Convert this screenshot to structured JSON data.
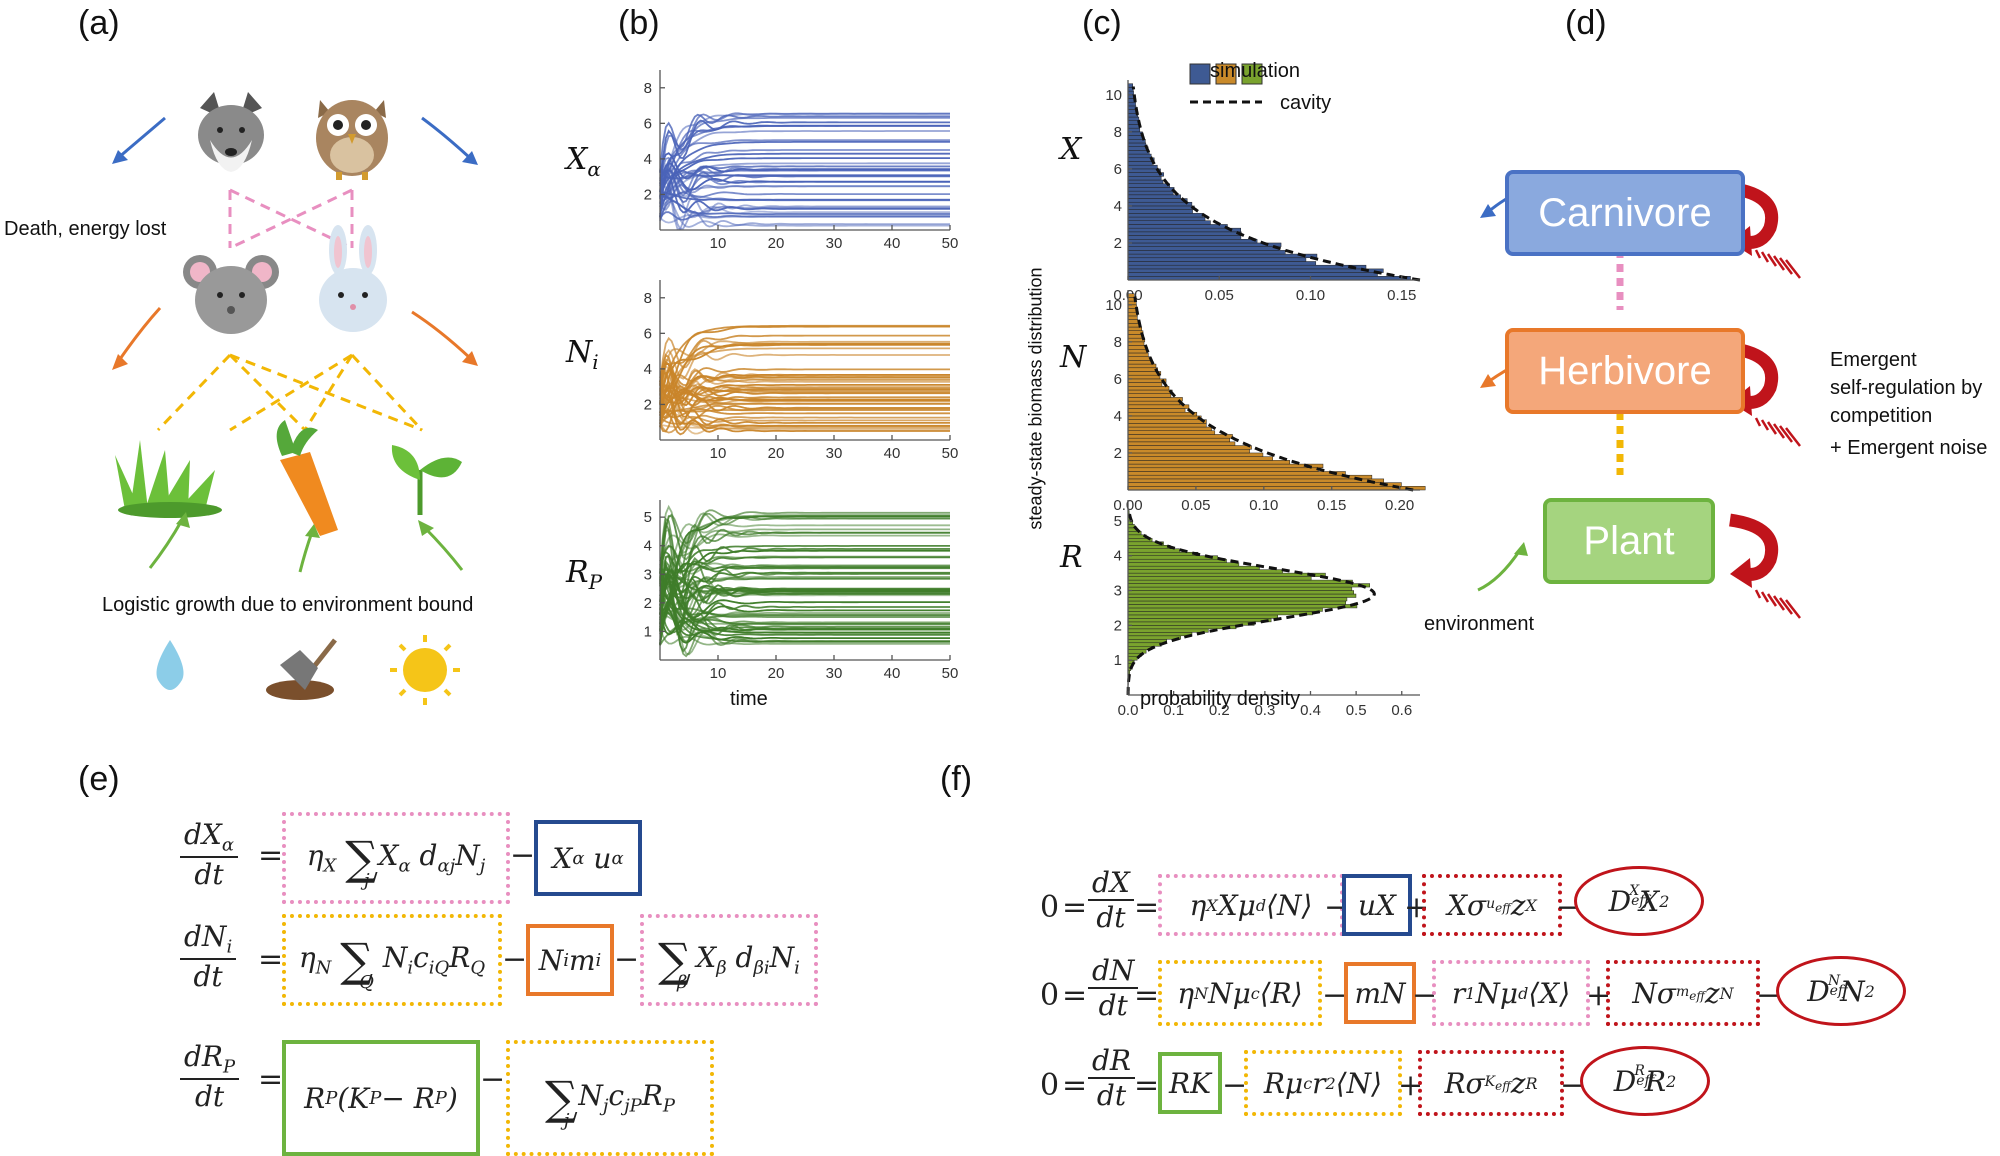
{
  "panels": {
    "a": "(a)",
    "b": "(b)",
    "c": "(c)",
    "d": "(d)",
    "e": "(e)",
    "f": "(f)"
  },
  "panel_a": {
    "death_text": "Death, energy lost",
    "growth_text": "Logistic growth due to environment bound",
    "icons": [
      "wolf-icon",
      "owl-icon",
      "mouse-icon",
      "rabbit-icon",
      "grass-icon",
      "carrot-icon",
      "sprout-icon",
      "water-drop-icon",
      "shovel-icon",
      "sun-icon"
    ]
  },
  "panel_b": {
    "ylabels": [
      "X",
      "α",
      "N",
      "i",
      "R",
      "P"
    ],
    "xlabel": "time",
    "xticks": [
      "10",
      "20",
      "30",
      "40",
      "50"
    ],
    "yticks_X": [
      "2",
      "4",
      "6",
      "8"
    ],
    "yticks_N": [
      "2",
      "4",
      "6",
      "8"
    ],
    "yticks_R": [
      "1",
      "2",
      "3",
      "4",
      "5"
    ],
    "colors": {
      "X": "#4a63b8",
      "N": "#c9852a",
      "R": "#3f7d2a"
    }
  },
  "panel_c": {
    "legend_sim": "simulation",
    "legend_cavity": "cavity",
    "side_label": "steady-state biomass distribution",
    "xlabel": "probability density",
    "ylabels": [
      "X",
      "N",
      "R"
    ],
    "xticks_X": [
      "0.00",
      "0.05",
      "0.10",
      "0.15"
    ],
    "xticks_N": [
      "0.00",
      "0.05",
      "0.10",
      "0.15",
      "0.20"
    ],
    "xticks_R": [
      "0.0",
      "0.1",
      "0.2",
      "0.3",
      "0.4",
      "0.5",
      "0.6"
    ],
    "yticks_X": [
      "2",
      "4",
      "6",
      "8",
      "10"
    ],
    "yticks_N": [
      "2",
      "4",
      "6",
      "8",
      "10"
    ],
    "yticks_R": [
      "1",
      "2",
      "3",
      "4",
      "5"
    ],
    "colors": {
      "X": "#3e5a93",
      "N": "#c98a2a",
      "R": "#7aa32e"
    }
  },
  "panel_d": {
    "carnivore": "Carnivore",
    "herbivore": "Herbivore",
    "plant": "Plant",
    "emergent1": "Emergent",
    "emergent2": "self-regulation by",
    "emergent3": "competition",
    "emergent4": "+ Emergent noise",
    "environment": "environment"
  }
}
